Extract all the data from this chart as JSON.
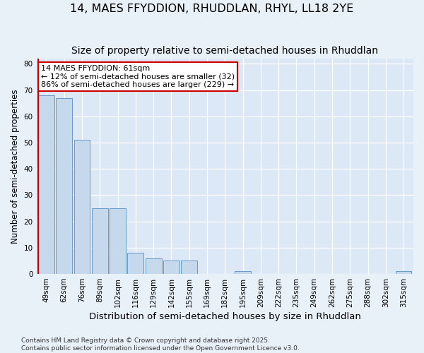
{
  "title": "14, MAES FFYDDION, RHUDDLAN, RHYL, LL18 2YE",
  "subtitle": "Size of property relative to semi-detached houses in Rhuddlan",
  "xlabel": "Distribution of semi-detached houses by size in Rhuddlan",
  "ylabel": "Number of semi-detached properties",
  "categories": [
    "49sqm",
    "62sqm",
    "76sqm",
    "89sqm",
    "102sqm",
    "116sqm",
    "129sqm",
    "142sqm",
    "155sqm",
    "169sqm",
    "182sqm",
    "195sqm",
    "209sqm",
    "222sqm",
    "235sqm",
    "249sqm",
    "262sqm",
    "275sqm",
    "288sqm",
    "302sqm",
    "315sqm"
  ],
  "values": [
    68,
    67,
    51,
    25,
    25,
    8,
    6,
    5,
    5,
    0,
    0,
    1,
    0,
    0,
    0,
    0,
    0,
    0,
    0,
    0,
    1
  ],
  "bar_color": "#c5d8ec",
  "bar_edge_color": "#6699cc",
  "highlight_color": "#cc0000",
  "vline_x_index": 0,
  "annotation_text": "14 MAES FFYDDION: 61sqm\n← 12% of semi-detached houses are smaller (32)\n86% of semi-detached houses are larger (229) →",
  "annotation_box_color": "#ffffff",
  "annotation_box_edge": "#cc0000",
  "ylim": [
    0,
    82
  ],
  "yticks": [
    0,
    10,
    20,
    30,
    40,
    50,
    60,
    70,
    80
  ],
  "plot_bg_color": "#dce8f5",
  "fig_bg_color": "#e8f0f8",
  "footer_text": "Contains HM Land Registry data © Crown copyright and database right 2025.\nContains public sector information licensed under the Open Government Licence v3.0.",
  "title_fontsize": 11.5,
  "subtitle_fontsize": 10,
  "xlabel_fontsize": 9.5,
  "ylabel_fontsize": 8.5,
  "tick_fontsize": 7.5,
  "annotation_fontsize": 8,
  "footer_fontsize": 6.5
}
